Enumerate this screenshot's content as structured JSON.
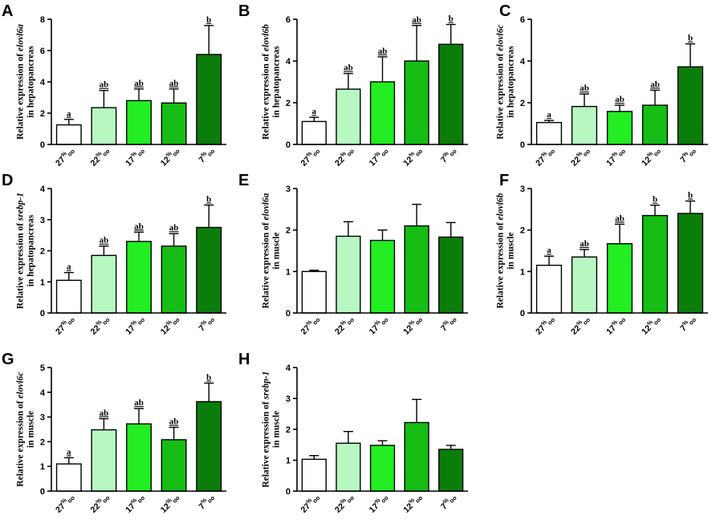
{
  "figure": {
    "category_labels": [
      {
        "main": "27",
        "sup": "%",
        "sub": "oo"
      },
      {
        "main": "22",
        "sup": "%",
        "sub": "oo"
      },
      {
        "main": "17",
        "sup": "%",
        "sub": "oo"
      },
      {
        "main": "12",
        "sup": "%",
        "sub": "oo"
      },
      {
        "main": "7",
        "sup": "%",
        "sub": "oo"
      }
    ],
    "bar_colors": [
      "#ffffff",
      "#b7f7c2",
      "#22ee22",
      "#15bd15",
      "#0b7d0b"
    ]
  },
  "chart_data": [
    {
      "panel": "A",
      "type": "bar",
      "ylabel_prefix": "Relative expression of ",
      "gene": "elovl6a",
      "tissue": "in hepatopancreas",
      "categories": [
        "27‰",
        "22‰",
        "17‰",
        "12‰",
        "7‰"
      ],
      "values": [
        1.25,
        2.35,
        2.8,
        2.65,
        5.75
      ],
      "errors": [
        0.35,
        1.1,
        0.75,
        0.9,
        1.85
      ],
      "letters": [
        "a",
        "ab",
        "ab",
        "ab",
        "b"
      ],
      "ylim": [
        0,
        8
      ],
      "yticks": [
        0,
        2,
        4,
        6,
        8
      ]
    },
    {
      "panel": "B",
      "type": "bar",
      "ylabel_prefix": "Relative expression of ",
      "gene": "elovl6b",
      "tissue": "in hepatopancreas",
      "categories": [
        "27‰",
        "22‰",
        "17‰",
        "12‰",
        "7‰"
      ],
      "values": [
        1.1,
        2.65,
        3.0,
        4.0,
        4.8
      ],
      "errors": [
        0.2,
        0.75,
        1.2,
        1.7,
        0.95
      ],
      "letters": [
        "a",
        "ab",
        "ab",
        "ab",
        "b"
      ],
      "ylim": [
        0,
        6
      ],
      "yticks": [
        0,
        2,
        4,
        6
      ]
    },
    {
      "panel": "C",
      "type": "bar",
      "ylabel_prefix": "Relative expression of ",
      "gene": "elovl6c",
      "tissue": "in hepatopancreas",
      "categories": [
        "27‰",
        "22‰",
        "17‰",
        "12‰",
        "7‰"
      ],
      "values": [
        1.05,
        1.82,
        1.58,
        1.88,
        3.72
      ],
      "errors": [
        0.1,
        0.6,
        0.3,
        0.72,
        1.1
      ],
      "letters": [
        "a",
        "ab",
        "ab",
        "ab",
        "b"
      ],
      "ylim": [
        0,
        6
      ],
      "yticks": [
        0,
        2,
        4,
        6
      ]
    },
    {
      "panel": "D",
      "type": "bar",
      "ylabel_prefix": "Relative expression of ",
      "gene": "srebp-1",
      "tissue": "in hepatopancreas",
      "categories": [
        "27‰",
        "22‰",
        "17‰",
        "12‰",
        "7‰"
      ],
      "values": [
        1.05,
        1.85,
        2.3,
        2.15,
        2.75
      ],
      "errors": [
        0.25,
        0.3,
        0.3,
        0.4,
        0.72
      ],
      "letters": [
        "a",
        "ab",
        "ab",
        "ab",
        "b"
      ],
      "ylim": [
        0,
        4
      ],
      "yticks": [
        0,
        1,
        2,
        3,
        4
      ]
    },
    {
      "panel": "E",
      "type": "bar",
      "ylabel_prefix": "Relative expression of ",
      "gene": "elovl6a",
      "tissue": "in muscle",
      "categories": [
        "27‰",
        "22‰",
        "17‰",
        "12‰",
        "7‰"
      ],
      "values": [
        1.0,
        1.85,
        1.75,
        2.1,
        1.83
      ],
      "errors": [
        0.03,
        0.35,
        0.25,
        0.52,
        0.35
      ],
      "letters": [
        "",
        "",
        "",
        "",
        ""
      ],
      "ylim": [
        0,
        3
      ],
      "yticks": [
        0,
        1,
        2,
        3
      ]
    },
    {
      "panel": "F",
      "type": "bar",
      "ylabel_prefix": "Relative expression of ",
      "gene": "elovl6b",
      "tissue": "in muscle",
      "categories": [
        "27‰",
        "22‰",
        "17‰",
        "12‰",
        "7‰"
      ],
      "values": [
        1.15,
        1.35,
        1.67,
        2.35,
        2.4
      ],
      "errors": [
        0.22,
        0.18,
        0.47,
        0.25,
        0.3
      ],
      "letters": [
        "a",
        "ab",
        "ab",
        "b",
        "b"
      ],
      "ylim": [
        0,
        3
      ],
      "yticks": [
        0,
        1,
        2,
        3
      ]
    },
    {
      "panel": "G",
      "type": "bar",
      "ylabel_prefix": "Relative expression of ",
      "gene": "elovl6c",
      "tissue": "in muscle",
      "categories": [
        "27‰",
        "22‰",
        "17‰",
        "12‰",
        "7‰"
      ],
      "values": [
        1.1,
        2.48,
        2.72,
        2.08,
        3.62
      ],
      "errors": [
        0.25,
        0.45,
        0.62,
        0.5,
        0.75
      ],
      "letters": [
        "a",
        "ab",
        "ab",
        "ab",
        "b"
      ],
      "ylim": [
        0,
        5
      ],
      "yticks": [
        0,
        1,
        2,
        3,
        4,
        5
      ]
    },
    {
      "panel": "H",
      "type": "bar",
      "ylabel_prefix": "Relative expression of ",
      "gene": "srebp-1",
      "tissue": "in muscle",
      "categories": [
        "27‰",
        "22‰",
        "17‰",
        "12‰",
        "7‰"
      ],
      "values": [
        1.03,
        1.55,
        1.48,
        2.22,
        1.35
      ],
      "errors": [
        0.12,
        0.38,
        0.15,
        0.75,
        0.13
      ],
      "letters": [
        "",
        "",
        "",
        "",
        ""
      ],
      "ylim": [
        0,
        4
      ],
      "yticks": [
        0,
        1,
        2,
        3,
        4
      ]
    }
  ]
}
